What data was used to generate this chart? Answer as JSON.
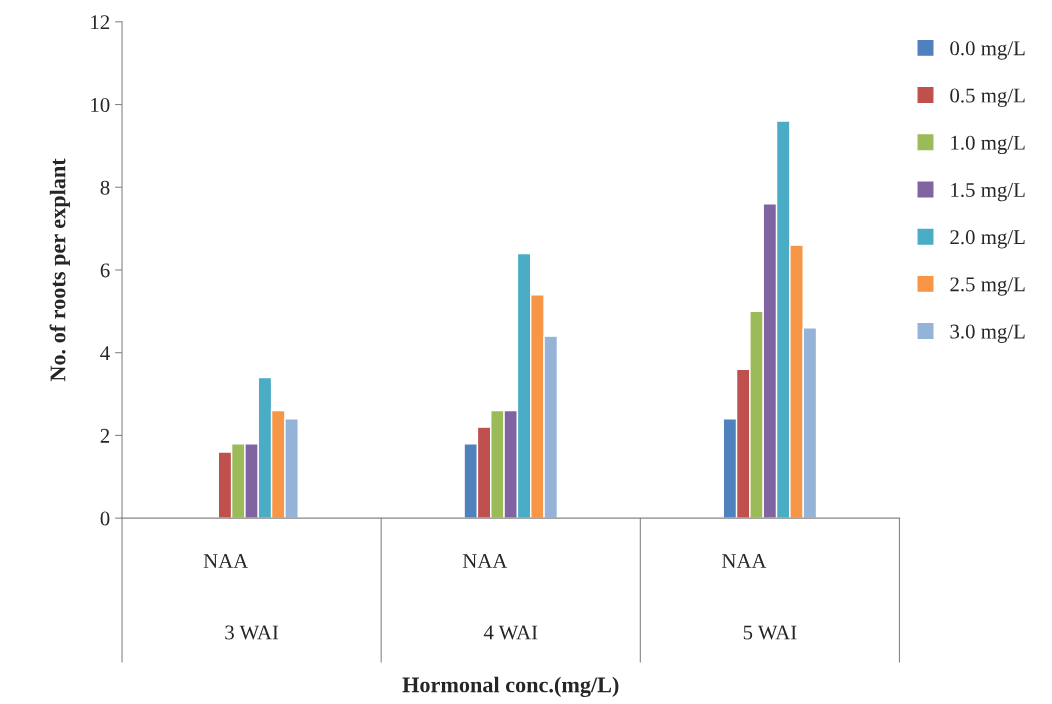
{
  "chart_data": {
    "type": "bar",
    "xlabel": "Hormonal conc.(mg/L)",
    "ylabel": "No. of roots per explant",
    "categories": [
      "NAA",
      "NAA",
      "NAA"
    ],
    "annotations": [
      "3 WAI",
      "4 WAI",
      "5 WAI"
    ],
    "series": [
      {
        "name": "0.0 mg/L",
        "color": "#4f81bd",
        "values": [
          null,
          1.8,
          2.4
        ]
      },
      {
        "name": "0.5 mg/L",
        "color": "#c0504d",
        "values": [
          1.6,
          2.2,
          3.6
        ]
      },
      {
        "name": "1.0 mg/L",
        "color": "#9bbb59",
        "values": [
          1.8,
          2.6,
          5.0
        ]
      },
      {
        "name": "1.5 mg/L",
        "color": "#8064a2",
        "values": [
          1.8,
          2.6,
          7.6
        ]
      },
      {
        "name": "2.0 mg/L",
        "color": "#4bacc6",
        "values": [
          3.4,
          6.4,
          9.6
        ]
      },
      {
        "name": "2.5 mg/L",
        "color": "#f79646",
        "values": [
          2.6,
          5.4,
          6.6
        ]
      },
      {
        "name": "3.0 mg/L",
        "color": "#95b3d7",
        "values": [
          2.4,
          4.4,
          4.6
        ]
      }
    ],
    "ylim": [
      0,
      12
    ],
    "yticks": [
      0,
      2,
      4,
      6,
      8,
      10,
      12
    ],
    "grid": false,
    "legend": "right"
  }
}
